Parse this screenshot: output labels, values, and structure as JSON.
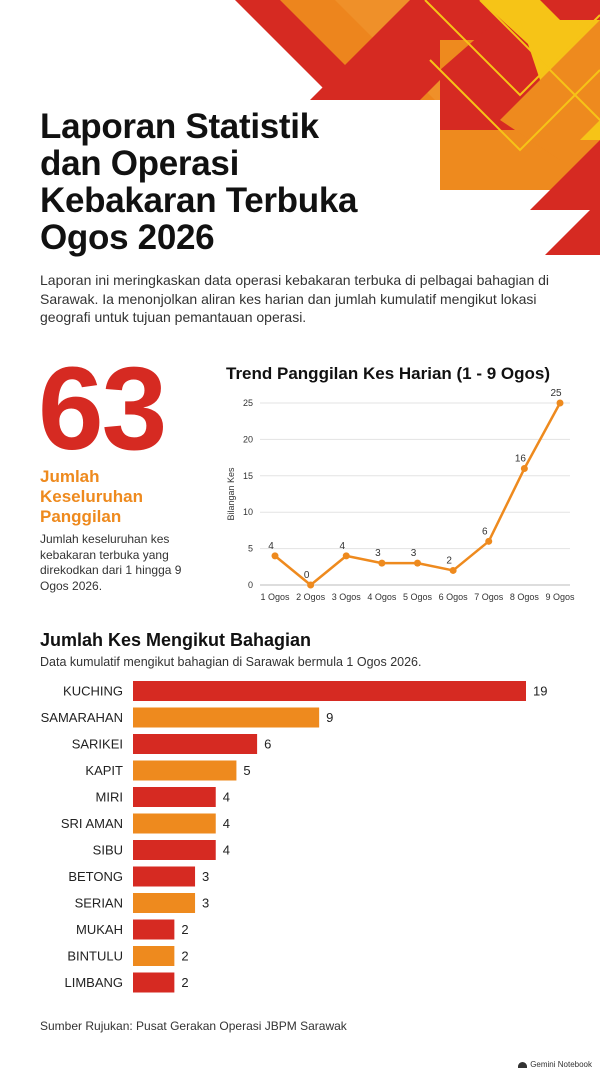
{
  "header": {
    "title_lines": [
      "Laporan Statistik",
      "dan Operasi",
      "Kebakaran Terbuka",
      "Ogos 2026"
    ],
    "intro": "Laporan ini meringkaskan data operasi kebakaran terbuka di pelbagai bahagian di Sarawak. Ia menonjolkan aliran kes harian dan jumlah kumulatif mengikut lokasi geografi untuk tujuan pemantauan operasi."
  },
  "summary": {
    "total": "63",
    "label_lines": [
      "Jumlah",
      "Keseluruhan",
      "Panggilan"
    ],
    "description": "Jumlah keseluruhan kes kebakaran terbuka yang direkodkan dari 1 hingga 9 Ogos 2026."
  },
  "colors": {
    "red": "#d62a22",
    "orange": "#ee8a1e",
    "yellow": "#f6c417",
    "grid": "#e3e3e3",
    "axis_text": "#333333"
  },
  "chart_data": [
    {
      "type": "line",
      "title": "Trend Panggilan Kes Harian (1 - 9 Ogos)",
      "xlabel": "",
      "ylabel": "Bilangan Kes",
      "categories": [
        "1 Ogos",
        "2 Ogos",
        "3 Ogos",
        "4 Ogos",
        "5 Ogos",
        "6 Ogos",
        "7 Ogos",
        "8 Ogos",
        "9 Ogos"
      ],
      "values": [
        4,
        0,
        4,
        3,
        3,
        2,
        6,
        16,
        25
      ],
      "yticks": [
        0,
        5,
        10,
        15,
        20,
        25
      ],
      "ylim": [
        0,
        25
      ],
      "grid": true,
      "color": "#ee8a1e"
    },
    {
      "type": "bar",
      "orientation": "horizontal",
      "title": "Jumlah Kes Mengikut Bahagian",
      "subtitle": "Data kumulatif mengikut bahagian di Sarawak bermula 1 Ogos 2026.",
      "categories": [
        "KUCHING",
        "SAMARAHAN",
        "SARIKEI",
        "KAPIT",
        "MIRI",
        "SRI AMAN",
        "SIBU",
        "BETONG",
        "SERIAN",
        "MUKAH",
        "BINTULU",
        "LIMBANG"
      ],
      "values": [
        19,
        9,
        6,
        5,
        4,
        4,
        4,
        3,
        3,
        2,
        2,
        2
      ],
      "bar_colors": [
        "#d62a22",
        "#ee8a1e",
        "#d62a22",
        "#ee8a1e",
        "#d62a22",
        "#ee8a1e",
        "#d62a22",
        "#d62a22",
        "#ee8a1e",
        "#d62a22",
        "#ee8a1e",
        "#d62a22"
      ]
    }
  ],
  "footer": {
    "source": "Sumber Rujukan: Pusat Gerakan Operasi JBPM Sarawak",
    "brand": "Gemini Notebook",
    "brand_icon": "notebook-logo-icon"
  }
}
